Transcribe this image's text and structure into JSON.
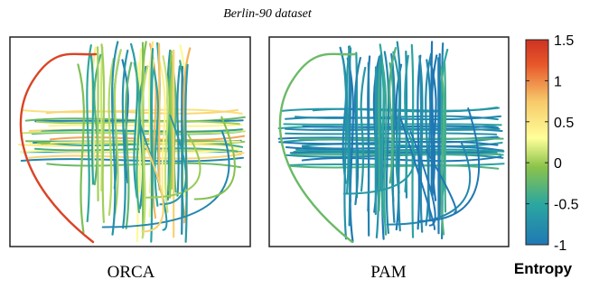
{
  "chart_data": {
    "type": "line",
    "title": "Berlin-90 dataset",
    "panels": [
      {
        "label": "ORCA",
        "dominant_entropy": 0.0,
        "spread": 0.9,
        "arc_entropy": 1.35
      },
      {
        "label": "PAM",
        "dominant_entropy": -0.75,
        "spread": 0.45,
        "arc_entropy": -0.2
      }
    ],
    "colorbar": {
      "title": "Entropy",
      "min": -1,
      "max": 1.5,
      "ticks": [
        1.5,
        1,
        0.5,
        0,
        -0.5,
        -1
      ],
      "tick_labels": [
        "1.5",
        "1",
        "0.5",
        "0",
        "-0.5",
        "-1"
      ],
      "colors": [
        "#1f78b4",
        "#2ca7a0",
        "#8bc34a",
        "#ffff99",
        "#f7c96a",
        "#e8562a",
        "#cc3322"
      ]
    }
  }
}
